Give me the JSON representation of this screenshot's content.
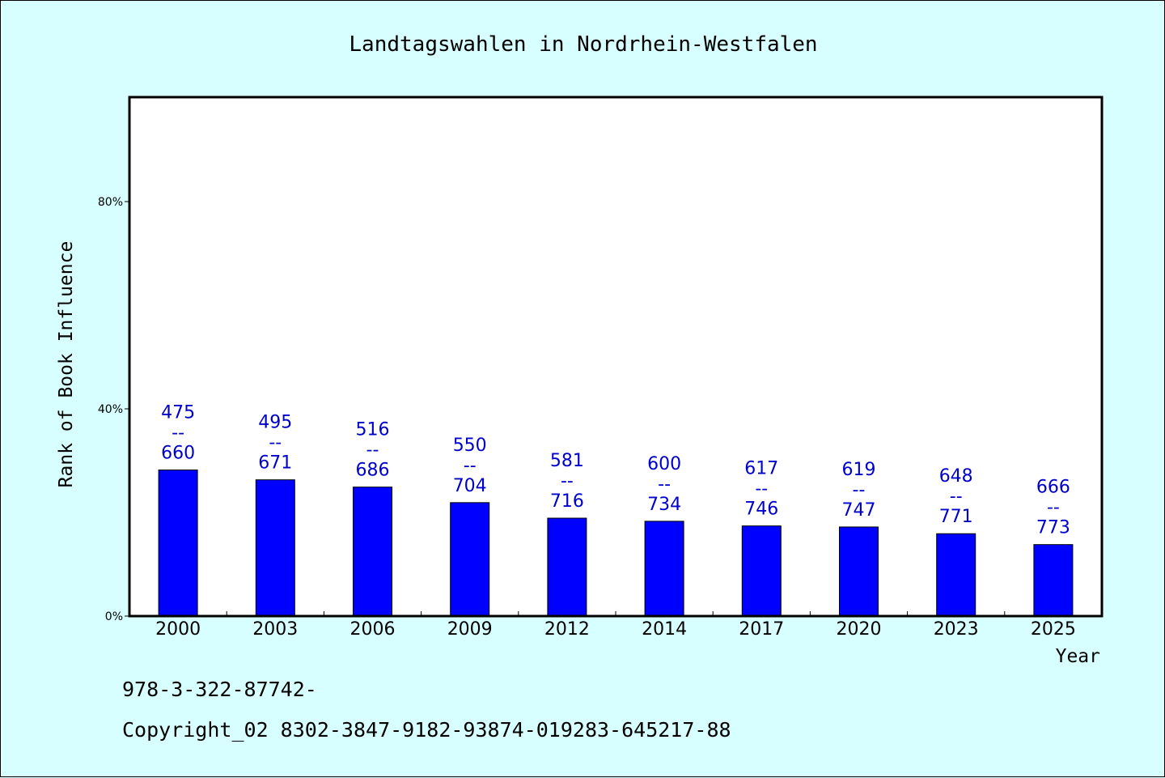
{
  "chart_data": {
    "type": "bar",
    "title": "Landtagswahlen in Nordrhein-Westfalen",
    "xlabel": "Year",
    "ylabel": "Rank of Book Influence",
    "categories": [
      "2000",
      "2003",
      "2006",
      "2009",
      "2012",
      "2014",
      "2017",
      "2020",
      "2023",
      "2025"
    ],
    "values": [
      28.2,
      26.3,
      24.9,
      21.9,
      18.9,
      18.3,
      17.4,
      17.2,
      15.9,
      13.8
    ],
    "value_labels": [
      [
        "475",
        "--",
        "660"
      ],
      [
        "495",
        "--",
        "671"
      ],
      [
        "516",
        "--",
        "686"
      ],
      [
        "550",
        "--",
        "704"
      ],
      [
        "581",
        "--",
        "716"
      ],
      [
        "600",
        "--",
        "734"
      ],
      [
        "617",
        "--",
        "746"
      ],
      [
        "619",
        "--",
        "747"
      ],
      [
        "648",
        "--",
        "771"
      ],
      [
        "666",
        "--",
        "773"
      ]
    ],
    "yticks": [
      0,
      40,
      80
    ],
    "ytick_labels": [
      "0%",
      "40%",
      "80%"
    ],
    "ylim": [
      0,
      100
    ],
    "grid": false,
    "legend": "none",
    "colors": {
      "bar": "#0000ff",
      "bar_label": "#0000cc",
      "plot_background": "#ffffff",
      "page_background": "#d8ffff"
    }
  },
  "footer": {
    "line1": "978-3-322-87742-",
    "line2": "Copyright_02 8302-3847-9182-93874-019283-645217-88"
  }
}
